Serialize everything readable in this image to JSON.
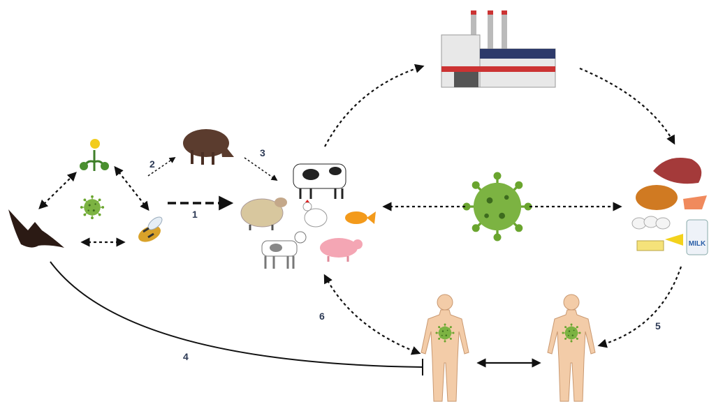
{
  "edges": [
    {
      "label": "1"
    },
    {
      "label": "2"
    },
    {
      "label": "3"
    },
    {
      "label": "4"
    },
    {
      "label": "5"
    },
    {
      "label": "6"
    }
  ],
  "food": {
    "milk": "MILK"
  }
}
